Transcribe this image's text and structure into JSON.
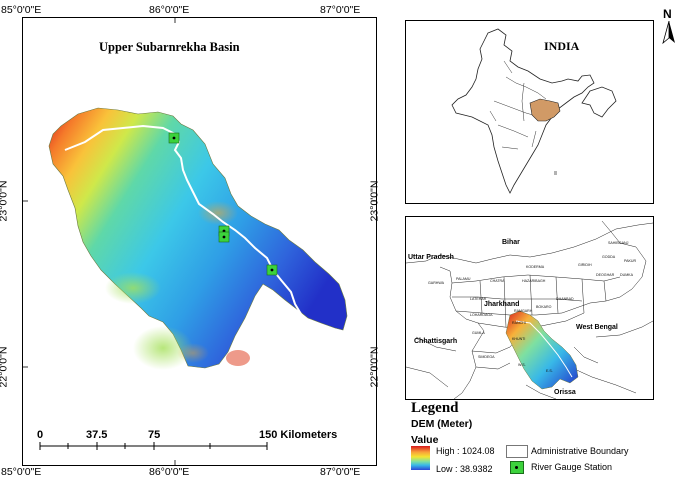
{
  "main_map": {
    "title": "Upper Subarnrekha Basin",
    "top_ticks": [
      "85°0'0\"E",
      "86°0'0\"E",
      "87°0'0\"E"
    ],
    "bottom_ticks": [
      "85°0'0\"E",
      "86°0'0\"E",
      "87°0'0\"E"
    ],
    "left_ticks": [
      "23°0'0\"N",
      "22°0'0\"N"
    ],
    "right_ticks": [
      "23°0'0\"N",
      "22°0'0\"N"
    ],
    "scale_bar": {
      "labels": [
        "0",
        "37.5",
        "75",
        "150 Kilometers"
      ]
    }
  },
  "north_arrow": {
    "label": "N"
  },
  "india_inset": {
    "title": "INDIA"
  },
  "region_inset": {
    "state_labels": [
      "Bihar",
      "Uttar Pradesh",
      "Jharkhand",
      "West Bengal",
      "Chhattisgarh",
      "Orissa"
    ],
    "district_labels": [
      "SAHIBGANJ",
      "GODDA",
      "PAKUR",
      "GIRIDIH",
      "DEOGHAR",
      "DUMKA",
      "KODERMA",
      "HAZARIBAGH",
      "PALAMU",
      "CHATRA",
      "GARHWA",
      "LATEHAR",
      "DHANBAD",
      "BOKARO",
      "RAMGARH",
      "LOHARDAGA",
      "RANCHI",
      "GUMLA",
      "KHUNTI",
      "SIMDEGA",
      "W.S.",
      "E.S."
    ]
  },
  "legend": {
    "title": "Legend",
    "subtitle": "DEM (Meter)",
    "value_label": "Value",
    "high_label": "High : 1024.08",
    "low_label": "Low : 38.9382",
    "boundary_label": "Administrative Boundary",
    "gauge_label": "River Gauge Station",
    "colors": {
      "high": "#d7191c",
      "mid": "#f4e532",
      "low": "#2c46d6",
      "gauge": "#3cd23c"
    }
  }
}
